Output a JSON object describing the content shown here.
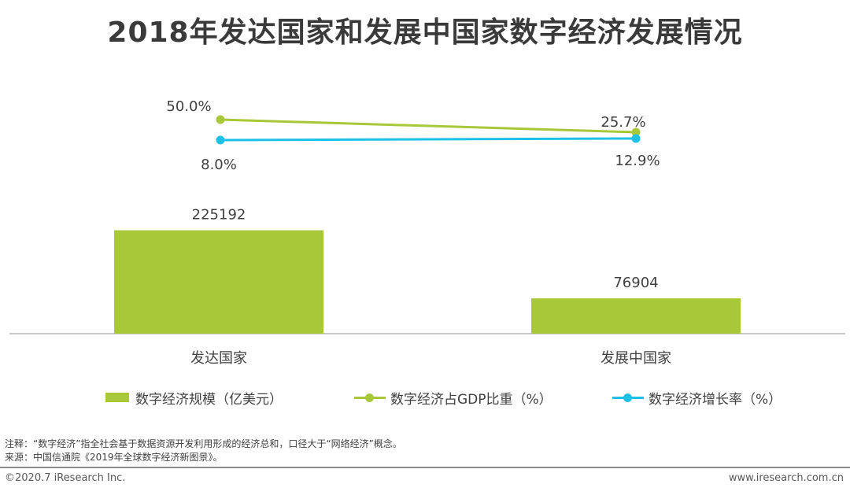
{
  "title": "2018年发达国家和发展中国家数字经济发展情况",
  "chart_data": {
    "type": "bar",
    "categories": [
      "发达国家",
      "发展中国家"
    ],
    "series": [
      {
        "name": "数字经济规模（亿美元）",
        "kind": "bar",
        "values": [
          225192,
          76904
        ],
        "labels": [
          "225192",
          "76904"
        ],
        "color": "#a8c83a"
      },
      {
        "name": "数字经济占GDP比重（%）",
        "kind": "line",
        "values": [
          50.0,
          25.7
        ],
        "labels": [
          "50.0%",
          "25.7%"
        ],
        "color": "#a8c83a"
      },
      {
        "name": "数字经济增长率（%）",
        "kind": "line",
        "values": [
          8.0,
          12.9
        ],
        "labels": [
          "8.0%",
          "12.9%"
        ],
        "color": "#1ec0e6"
      }
    ],
    "legend": "bottom",
    "grid": false
  },
  "footnote": {
    "note": "注释：“数字经济”指全社会基于数据资源开发利用形成的经济总和，口径大于“网络经济”概念。",
    "source": "来源：中国信通院《2019年全球数字经济新图景》。"
  },
  "footer": {
    "copyright": "©2020.7 iResearch Inc.",
    "website": "www.iresearch.com.cn"
  },
  "colors": {
    "axis": "#a6a6a6",
    "text": "#404040",
    "bar": "#a8c83a",
    "growth_line": "#1ec0e6"
  }
}
